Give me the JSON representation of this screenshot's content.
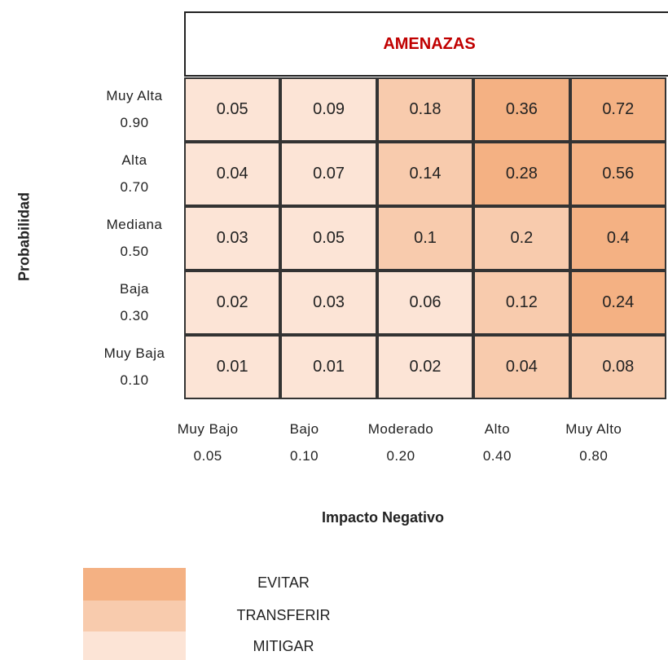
{
  "header": {
    "title": "AMENAZAS"
  },
  "y_axis_label": "Probabilidad",
  "x_axis_label": "Impacto Negativo",
  "rows": [
    {
      "name": "Muy Alta",
      "value": "0.90",
      "cells": [
        {
          "text": "0.05",
          "level": 2
        },
        {
          "text": "0.09",
          "level": 2
        },
        {
          "text": "0.18",
          "level": 1
        },
        {
          "text": "0.36",
          "level": 0
        },
        {
          "text": "0.72",
          "level": 0
        }
      ]
    },
    {
      "name": "Alta",
      "value": "0.70",
      "cells": [
        {
          "text": "0.04",
          "level": 2
        },
        {
          "text": "0.07",
          "level": 2
        },
        {
          "text": "0.14",
          "level": 1
        },
        {
          "text": "0.28",
          "level": 0
        },
        {
          "text": "0.56",
          "level": 0
        }
      ]
    },
    {
      "name": "Mediana",
      "value": "0.50",
      "cells": [
        {
          "text": "0.03",
          "level": 2
        },
        {
          "text": "0.05",
          "level": 2
        },
        {
          "text": "0.1",
          "level": 1
        },
        {
          "text": "0.2",
          "level": 1
        },
        {
          "text": "0.4",
          "level": 0
        }
      ]
    },
    {
      "name": "Baja",
      "value": "0.30",
      "cells": [
        {
          "text": "0.02",
          "level": 2
        },
        {
          "text": "0.03",
          "level": 2
        },
        {
          "text": "0.06",
          "level": 2
        },
        {
          "text": "0.12",
          "level": 1
        },
        {
          "text": "0.24",
          "level": 0
        }
      ]
    },
    {
      "name": "Muy Baja",
      "value": "0.10",
      "cells": [
        {
          "text": "0.01",
          "level": 2
        },
        {
          "text": "0.01",
          "level": 2
        },
        {
          "text": "0.02",
          "level": 2
        },
        {
          "text": "0.04",
          "level": 1
        },
        {
          "text": "0.08",
          "level": 1
        }
      ]
    }
  ],
  "columns": [
    {
      "name": "Muy Bajo",
      "value": "0.05"
    },
    {
      "name": "Bajo",
      "value": "0.10"
    },
    {
      "name": "Moderado",
      "value": "0.20"
    },
    {
      "name": "Alto",
      "value": "0.40"
    },
    {
      "name": "Muy Alto",
      "value": "0.80"
    }
  ],
  "legend": [
    {
      "label": "EVITAR",
      "color": "#f4b183"
    },
    {
      "label": "TRANSFERIR",
      "color": "#f8cbad"
    },
    {
      "label": "MITIGAR",
      "color": "#fce4d6"
    }
  ]
}
